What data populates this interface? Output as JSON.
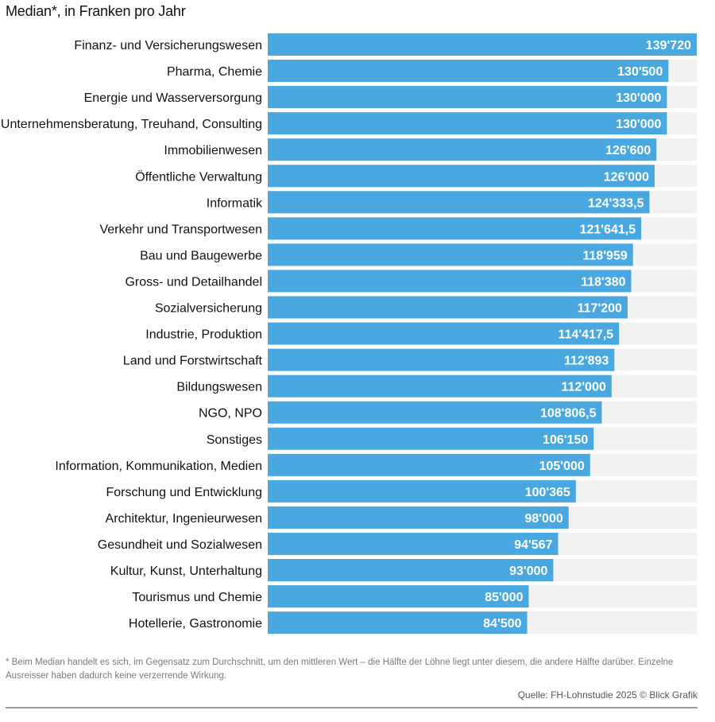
{
  "subtitle": "Median*, in Franken pro Jahr",
  "footnote": "* Beim Median handelt es sich, im Gegensatz zum Durchschnitt, um den mittleren Wert – die Hälfte der Löhne liegt unter diesem, die andere Hälfte darüber. Einzelne Ausreisser haben dadurch keine verzerrende Wirkung.",
  "source": "Quelle: FH-Lohnstudie 2025 © Blick Grafik",
  "colors": {
    "bar": "#4aa8e0",
    "track": "#f2f2f2",
    "label": "#111111",
    "value_label": "#ffffff"
  },
  "chart_data": {
    "type": "bar",
    "orientation": "horizontal",
    "title": "Median*, in Franken pro Jahr",
    "xlabel": "",
    "ylabel": "",
    "xlim": [
      0,
      139720
    ],
    "categories": [
      "Finanz- und Versicherungswesen",
      "Pharma, Chemie",
      "Energie und Wasserversorgung",
      "Unternehmensberatung, Treuhand, Consulting",
      "Immobilienwesen",
      "Öffentliche Verwaltung",
      "Informatik",
      "Verkehr und Transportwesen",
      "Bau und Baugewerbe",
      "Gross- und Detailhandel",
      "Sozialversicherung",
      "Industrie, Produktion",
      "Land und Forstwirtschaft",
      "Bildungswesen",
      "NGO, NPO",
      "Sonstiges",
      "Information, Kommunikation, Medien",
      "Forschung und Entwicklung",
      "Architektur, Ingenieurwesen",
      "Gesundheit und Sozialwesen",
      "Kultur, Kunst, Unterhaltung",
      "Tourismus und Chemie",
      "Hotellerie, Gastronomie"
    ],
    "values": [
      139720,
      130500,
      130000,
      130000,
      126600,
      126000,
      124333.5,
      121641.5,
      118959,
      118380,
      117200,
      114417.5,
      112893,
      112000,
      108806.5,
      106150,
      105000,
      100365,
      98000,
      94567,
      93000,
      85000,
      84500
    ],
    "value_labels": [
      "139'720",
      "130'500",
      "130'000",
      "130'000",
      "126'600",
      "126'000",
      "124'333,5",
      "121'641,5",
      "118'959",
      "118'380",
      "117'200",
      "114'417,5",
      "112'893",
      "112'000",
      "108'806,5",
      "106'150",
      "105'000",
      "100'365",
      "98'000",
      "94'567",
      "93'000",
      "85'000",
      "84'500"
    ],
    "grid": false,
    "legend": "none"
  }
}
